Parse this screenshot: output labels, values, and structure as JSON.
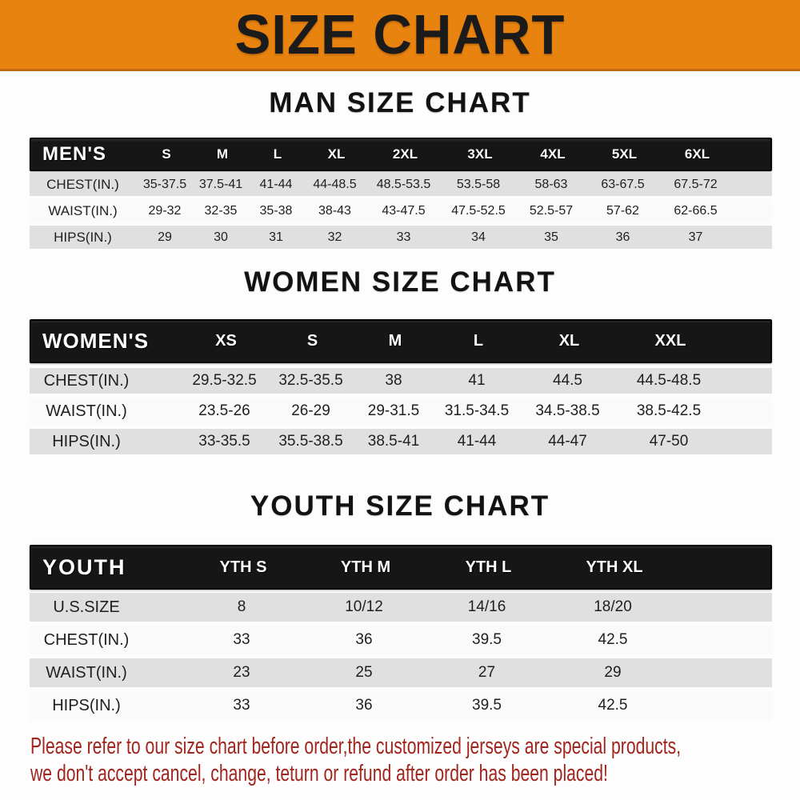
{
  "banner": {
    "title": "SIZE CHART"
  },
  "sections": [
    {
      "title": "MAN SIZE CHART",
      "header_label": "MEN'S",
      "sizes": [
        "S",
        "M",
        "L",
        "XL",
        "2XL",
        "3XL",
        "4XL",
        "5XL",
        "6XL"
      ],
      "rows": [
        {
          "label": "CHEST(IN.)",
          "values": [
            "35-37.5",
            "37.5-41",
            "41-44",
            "44-48.5",
            "48.5-53.5",
            "53.5-58",
            "58-63",
            "63-67.5",
            "67.5-72"
          ]
        },
        {
          "label": "WAIST(IN.)",
          "values": [
            "29-32",
            "32-35",
            "35-38",
            "38-43",
            "43-47.5",
            "47.5-52.5",
            "52.5-57",
            "57-62",
            "62-66.5"
          ]
        },
        {
          "label": "HIPS(IN.)",
          "values": [
            "29",
            "30",
            "31",
            "32",
            "33",
            "34",
            "35",
            "36",
            "37"
          ]
        }
      ]
    },
    {
      "title": "WOMEN SIZE CHART",
      "header_label": "WOMEN'S",
      "sizes": [
        "XS",
        "S",
        "M",
        "L",
        "XL",
        "XXL"
      ],
      "rows": [
        {
          "label": "CHEST(IN.)",
          "values": [
            "29.5-32.5",
            "32.5-35.5",
            "38",
            "41",
            "44.5",
            "44.5-48.5"
          ]
        },
        {
          "label": "WAIST(IN.)",
          "values": [
            "23.5-26",
            "26-29",
            "29-31.5",
            "31.5-34.5",
            "34.5-38.5",
            "38.5-42.5"
          ]
        },
        {
          "label": "HIPS(IN.)",
          "values": [
            "33-35.5",
            "35.5-38.5",
            "38.5-41",
            "41-44",
            "44-47",
            "47-50"
          ]
        }
      ]
    },
    {
      "title": "YOUTH SIZE CHART",
      "header_label": "YOUTH",
      "sizes": [
        "YTH S",
        "YTH M",
        "YTH L",
        "YTH XL"
      ],
      "rows": [
        {
          "label": "U.S.SIZE",
          "values": [
            "8",
            "10/12",
            "14/16",
            "18/20"
          ]
        },
        {
          "label": "CHEST(IN.)",
          "values": [
            "33",
            "36",
            "39.5",
            "42.5"
          ]
        },
        {
          "label": "WAIST(IN.)",
          "values": [
            "23",
            "25",
            "27",
            "29"
          ]
        },
        {
          "label": "HIPS(IN.)",
          "values": [
            "33",
            "36",
            "39.5",
            "42.5"
          ]
        }
      ]
    }
  ],
  "disclaimer": {
    "line1": "Please refer to our size chart before order,the customized jerseys are special products,",
    "line2": "we don't accept cancel, change, teturn or refund after order has been placed!"
  },
  "colors": {
    "banner_orange": "#E9830F",
    "banner_border": "#C16A12",
    "header_black": "#161616",
    "row_gray": "#E0E0E0",
    "row_white": "#FAFAFA",
    "disclaimer_red": "#A1251D"
  }
}
